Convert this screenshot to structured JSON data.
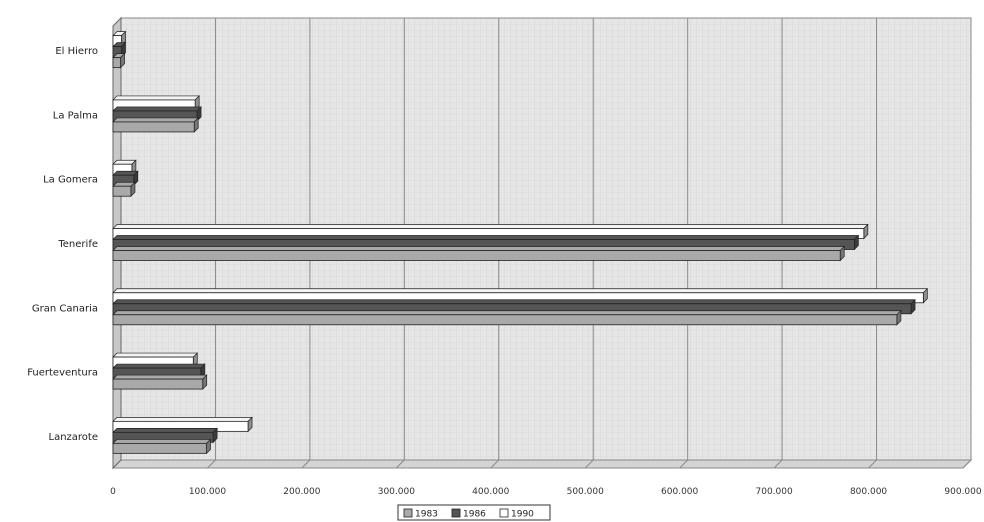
{
  "chart_data": {
    "type": "bar",
    "orientation": "horizontal",
    "categories": [
      "El Hierro",
      "La Palma",
      "La Gomera",
      "Tenerife",
      "Gran Canaria",
      "Fuerteventura",
      "Lanzarote"
    ],
    "series": [
      {
        "name": "1990",
        "color": "#ffffff",
        "values": [
          9000,
          87000,
          20000,
          795000,
          858000,
          85000,
          143000
        ]
      },
      {
        "name": "1986",
        "color": "#555555",
        "values": [
          9000,
          89000,
          22000,
          785000,
          845000,
          93000,
          106000
        ]
      },
      {
        "name": "1983",
        "color": "#a9a9a9",
        "values": [
          8000,
          86000,
          19000,
          770000,
          830000,
          95000,
          99000
        ]
      }
    ],
    "legend_order": [
      "1983",
      "1986",
      "1990"
    ],
    "xlim": [
      0,
      900000
    ],
    "x_ticks": [
      0,
      100000,
      200000,
      300000,
      400000,
      500000,
      600000,
      700000,
      800000,
      900000
    ],
    "x_tick_labels": [
      "0",
      "100.000",
      "200.000",
      "300.000",
      "400.000",
      "500.000",
      "600.000",
      "700.000",
      "800.000",
      "900.000"
    ],
    "title": "",
    "xlabel": "",
    "ylabel": "",
    "grid": true,
    "legend_position": "bottom-center",
    "style": "3d"
  }
}
